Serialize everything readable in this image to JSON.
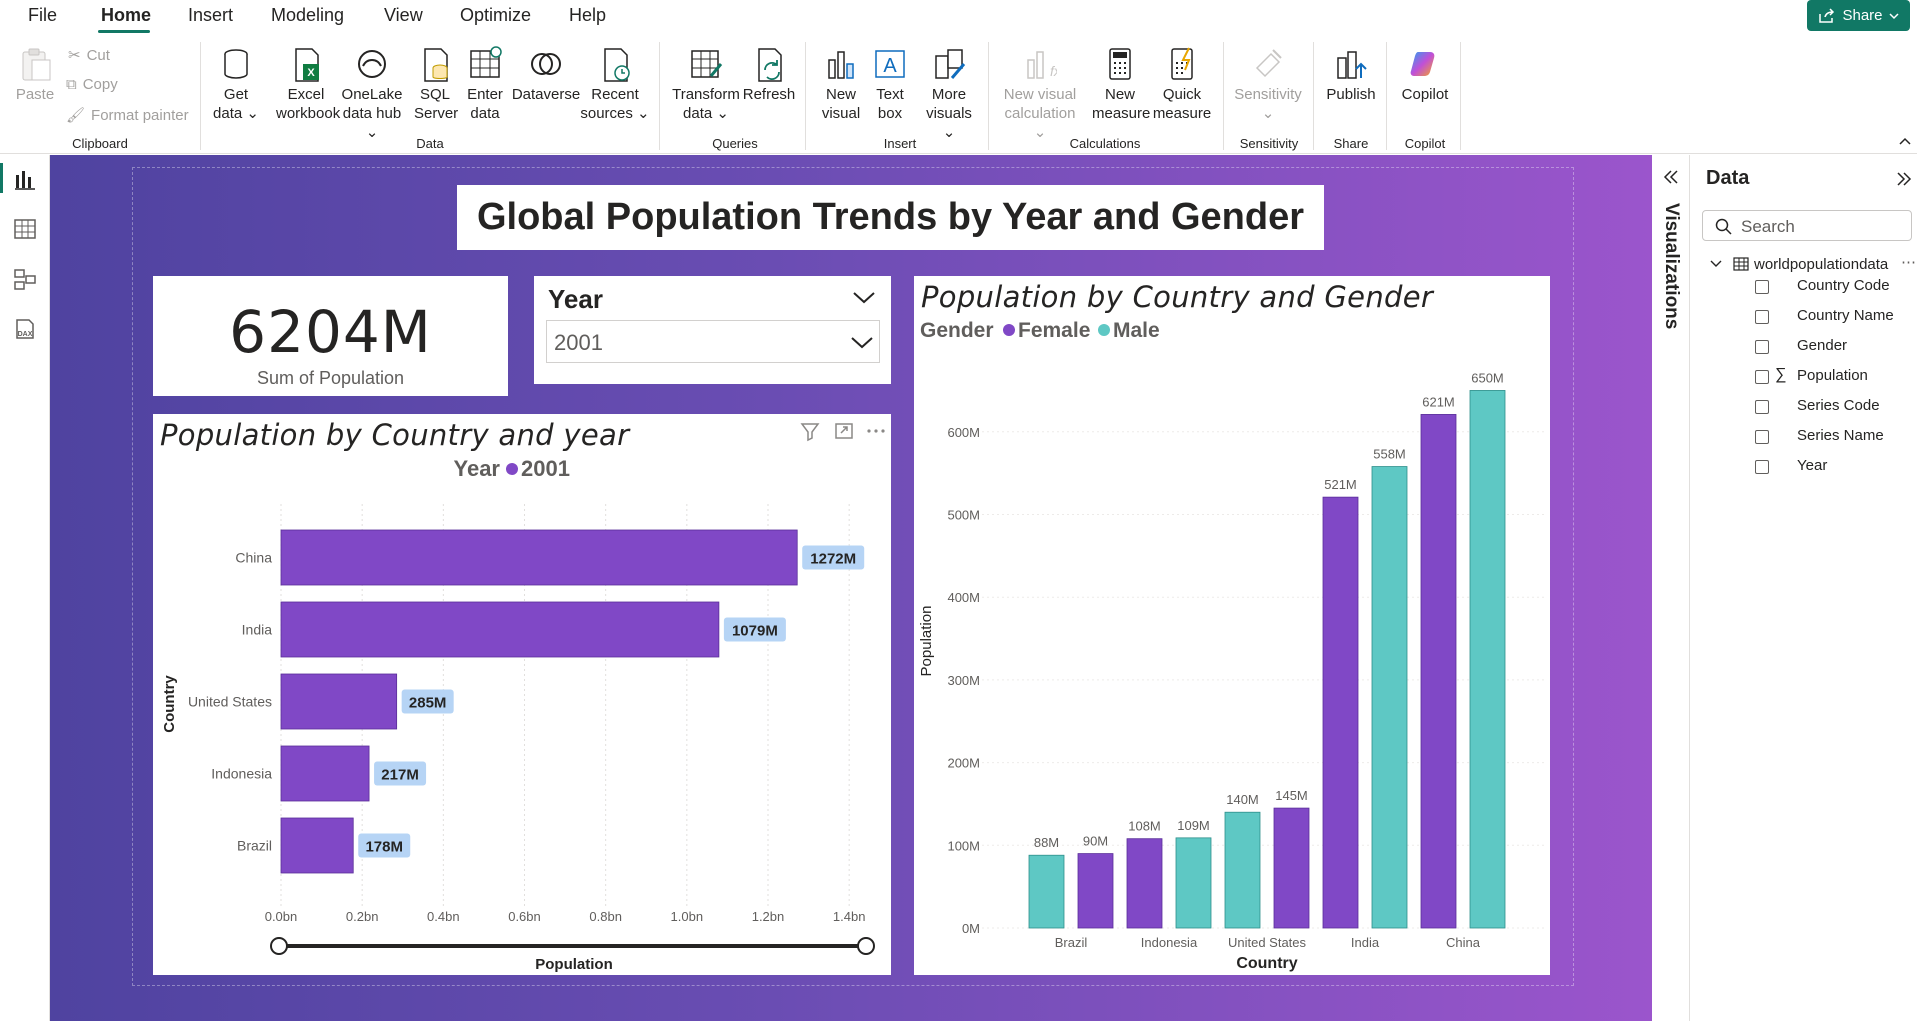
{
  "menu": {
    "file": "File",
    "home": "Home",
    "insert": "Insert",
    "modeling": "Modeling",
    "view": "View",
    "optimize": "Optimize",
    "help": "Help",
    "share": "Share"
  },
  "ribbon": {
    "paste": "Paste",
    "cut": "Cut",
    "copy": "Copy",
    "format_painter": "Format painter",
    "get_data_1": "Get",
    "get_data_2": "data",
    "excel_1": "Excel",
    "excel_2": "workbook",
    "onelake_1": "OneLake",
    "onelake_2": "data hub",
    "sql_1": "SQL",
    "sql_2": "Server",
    "enter_1": "Enter",
    "enter_2": "data",
    "dataverse": "Dataverse",
    "recent_1": "Recent",
    "recent_2": "sources",
    "transform_1": "Transform",
    "transform_2": "data",
    "refresh": "Refresh",
    "new_visual_1": "New",
    "new_visual_2": "visual",
    "text_box_1": "Text",
    "text_box_2": "box",
    "more_visuals_1": "More",
    "more_visuals_2": "visuals",
    "new_visual_calc_1": "New visual",
    "new_visual_calc_2": "calculation",
    "new_measure_1": "New",
    "new_measure_2": "measure",
    "quick_measure_1": "Quick",
    "quick_measure_2": "measure",
    "sensitivity": "Sensitivity",
    "publish": "Publish",
    "copilot": "Copilot",
    "groups": {
      "clipboard": "Clipboard",
      "data": "Data",
      "queries": "Queries",
      "insert": "Insert",
      "calculations": "Calculations",
      "sensitivity": "Sensitivity",
      "share": "Share",
      "copilot": "Copilot"
    }
  },
  "report": {
    "title": "Global Population Trends by Year and Gender",
    "kpi": {
      "value": "6204M",
      "label": "Sum of Population"
    },
    "slicer": {
      "title": "Year",
      "value": "2001"
    }
  },
  "chart_data": [
    {
      "type": "bar",
      "orientation": "horizontal",
      "title": "Population by Country and year",
      "legend_title": "Year",
      "legend_placement": "top-center",
      "xlabel": "Population",
      "ylabel": "Country",
      "categories": [
        "China",
        "India",
        "United States",
        "Indonesia",
        "Brazil"
      ],
      "series": [
        {
          "name": "2001",
          "values": [
            1272,
            1079,
            285,
            217,
            178
          ],
          "color": "#8048c6"
        }
      ],
      "data_labels": [
        "1272M",
        "1079M",
        "285M",
        "217M",
        "178M"
      ],
      "xlim": [
        0,
        1.5
      ],
      "x_ticks": [
        "0.0bn",
        "0.2bn",
        "0.4bn",
        "0.6bn",
        "0.8bn",
        "1.0bn",
        "1.2bn",
        "1.4bn"
      ],
      "x_tick_values": [
        0,
        0.2,
        0.4,
        0.6,
        0.8,
        1.0,
        1.2,
        1.4
      ],
      "units": "bn"
    },
    {
      "type": "bar",
      "orientation": "vertical",
      "title": "Population by Country and Gender",
      "legend_title": "Gender",
      "legend_placement": "top-left",
      "xlabel": "Country",
      "ylabel": "Population",
      "categories": [
        "Brazil",
        "Indonesia",
        "United States",
        "India",
        "China"
      ],
      "bars": [
        {
          "country": "Brazil",
          "gender": "Male",
          "value": 88,
          "label": "88M"
        },
        {
          "country": "Brazil",
          "gender": "Female",
          "value": 90,
          "label": "90M"
        },
        {
          "country": "Indonesia",
          "gender": "Female",
          "value": 108,
          "label": "108M"
        },
        {
          "country": "Indonesia",
          "gender": "Male",
          "value": 109,
          "label": "109M"
        },
        {
          "country": "United States",
          "gender": "Male",
          "value": 140,
          "label": "140M"
        },
        {
          "country": "United States",
          "gender": "Female",
          "value": 145,
          "label": "145M"
        },
        {
          "country": "India",
          "gender": "Female",
          "value": 521,
          "label": "521M"
        },
        {
          "country": "India",
          "gender": "Male",
          "value": 558,
          "label": "558M"
        },
        {
          "country": "China",
          "gender": "Female",
          "value": 621,
          "label": "621M"
        },
        {
          "country": "China",
          "gender": "Male",
          "value": 650,
          "label": "650M"
        }
      ],
      "series": [
        {
          "name": "Female",
          "color": "#8048c6"
        },
        {
          "name": "Male",
          "color": "#5ec8c4"
        }
      ],
      "ylim": [
        0,
        700
      ],
      "y_ticks": [
        "0M",
        "100M",
        "200M",
        "300M",
        "400M",
        "500M",
        "600M"
      ],
      "y_tick_values": [
        0,
        100,
        200,
        300,
        400,
        500,
        600
      ]
    }
  ],
  "panel": {
    "visualizations": "Visualizations",
    "data_title": "Data",
    "search_placeholder": "Search",
    "table": "worldpopulationdata",
    "fields": [
      "Country Code",
      "Country Name",
      "Gender",
      "Population",
      "Series Code",
      "Series Name",
      "Year"
    ]
  },
  "colors": {
    "accent": "#117865",
    "female": "#8048c6",
    "male": "#5ec8c4"
  }
}
